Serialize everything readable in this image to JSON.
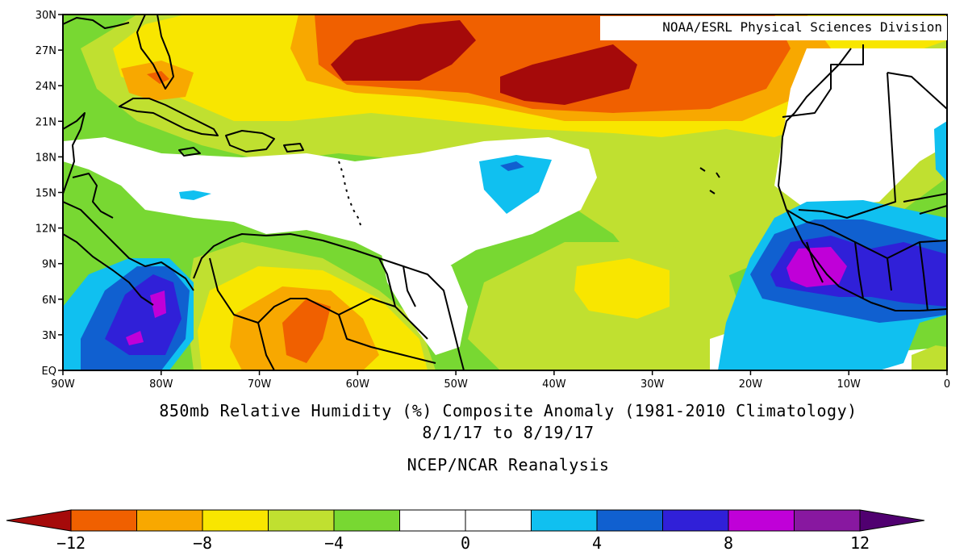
{
  "map": {
    "title": "850mb Relative Humidity (%) Composite Anomaly (1981-2010 Climatology)",
    "date_range": "8/1/17  to 8/19/17",
    "dataset": "NCEP/NCAR Reanalysis",
    "credit": "NOAA/ESRL Physical Sciences Division",
    "region": {
      "lon_min": -90,
      "lon_max": 0,
      "lat_min": 0,
      "lat_max": 30
    },
    "lon_ticks": [
      "90W",
      "80W",
      "70W",
      "60W",
      "50W",
      "40W",
      "30W",
      "20W",
      "10W",
      "0"
    ],
    "lat_ticks": [
      "30N",
      "27N",
      "24N",
      "21N",
      "18N",
      "15N",
      "12N",
      "9N",
      "6N",
      "3N",
      "EQ"
    ]
  },
  "colorbar": {
    "levels": [
      -12,
      -10,
      -8,
      -6,
      -4,
      -2,
      0,
      2,
      4,
      6,
      8,
      10,
      12
    ],
    "labels": [
      "-12",
      "-8",
      "-4",
      "0",
      "4",
      "8",
      "12"
    ],
    "colors": {
      "lt_-12": "#a50a0a",
      "-12_-10": "#f06000",
      "-10_-8": "#f8a800",
      "-8_-6": "#f8e600",
      "-6_-4": "#c0e030",
      "-4_-2": "#78d832",
      "-2_2": "#ffffff",
      "2_4": "#10c0f0",
      "4_6": "#1060d0",
      "6_8": "#3020d8",
      "8_10": "#c000d8",
      "10_12": "#8818a0",
      "gt_12": "#500070"
    }
  }
}
